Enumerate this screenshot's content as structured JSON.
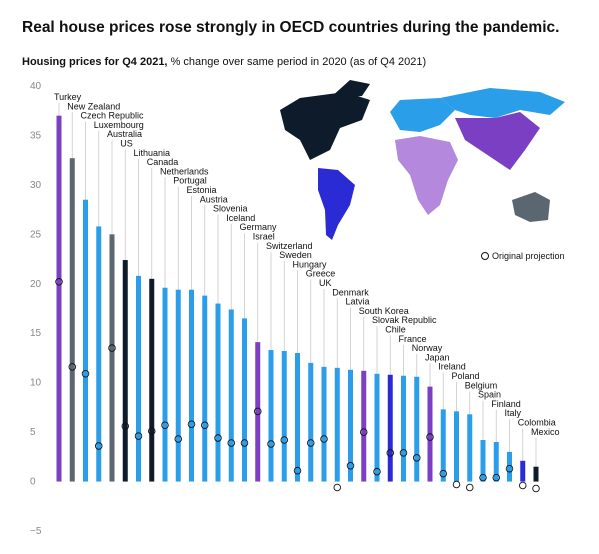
{
  "chart_data": {
    "type": "bar",
    "title": "Real house prices rose strongly in OECD countries during the pandemic.",
    "subtitle_bold": "Housing prices for Q4 2021,",
    "subtitle": "% change over same period in 2020 (as of Q4 2021)",
    "categories": [
      "Turkey",
      "New Zealand",
      "Czech Republic",
      "Luxembourg",
      "Australia",
      "US",
      "Lithuania",
      "Canada",
      "Netherlands",
      "Portugal",
      "Estonia",
      "Austria",
      "Slovenia",
      "Iceland",
      "Germany",
      "Israel",
      "Switzerland",
      "Sweden",
      "Hungary",
      "Greece",
      "UK",
      "Denmark",
      "Latvia",
      "South Korea",
      "Slovak Republic",
      "Chile",
      "France",
      "Norway",
      "Japan",
      "Ireland",
      "Poland",
      "Belgium",
      "Spain",
      "Finland",
      "Italy",
      "Colombia",
      "Mexico"
    ],
    "values": [
      37,
      32.7,
      28.5,
      25.8,
      25,
      22.4,
      20.8,
      20.5,
      19.6,
      19.4,
      19.4,
      18.8,
      18,
      17.4,
      16.5,
      14.1,
      13.3,
      13.2,
      13,
      12,
      11.6,
      11.5,
      11.3,
      11.2,
      10.9,
      10.8,
      10.7,
      10.6,
      9.6,
      7.3,
      7.1,
      6.8,
      4.2,
      4,
      3,
      2.1,
      1.5
    ],
    "colors": [
      "#7b3fc4",
      "#5b6770",
      "#2a9ee8",
      "#2a9ee8",
      "#5b6770",
      "#0d1b2a",
      "#2a9ee8",
      "#0d1b2a",
      "#2a9ee8",
      "#2a9ee8",
      "#2a9ee8",
      "#2a9ee8",
      "#2a9ee8",
      "#2a9ee8",
      "#2a9ee8",
      "#7b3fc4",
      "#2a9ee8",
      "#2a9ee8",
      "#2a9ee8",
      "#2a9ee8",
      "#2a9ee8",
      "#2a9ee8",
      "#2a9ee8",
      "#7b3fc4",
      "#2a9ee8",
      "#2b2bd6",
      "#2a9ee8",
      "#2a9ee8",
      "#7b3fc4",
      "#2a9ee8",
      "#2a9ee8",
      "#2a9ee8",
      "#2a9ee8",
      "#2a9ee8",
      "#2a9ee8",
      "#2b2bd6",
      "#0d1b2a"
    ],
    "projection": {
      "name": "Original projection",
      "values": [
        20.2,
        11.6,
        10.9,
        3.6,
        13.5,
        5.6,
        4.6,
        5.1,
        5.7,
        4.3,
        5.8,
        5.7,
        4.4,
        3.9,
        3.9,
        7.1,
        3.8,
        4.2,
        1.1,
        3.9,
        4.3,
        -0.6,
        1.6,
        5,
        1,
        2.9,
        2.9,
        2.4,
        4.5,
        0.8,
        -0.3,
        -0.6,
        0.4,
        0.4,
        1.3,
        -0.4,
        -0.7
      ]
    },
    "ylim": [
      -5,
      40
    ],
    "yticks": [
      {
        "value": -5,
        "label": "−5"
      },
      0,
      5,
      10,
      15,
      20,
      25,
      30,
      35,
      40
    ]
  }
}
